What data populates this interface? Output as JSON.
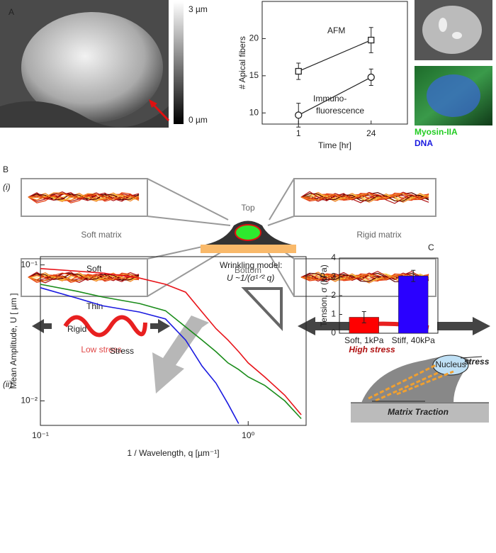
{
  "chart_data": [
    {
      "type": "line",
      "xlabel": "Time [hr]",
      "ylabel": "# Apical fibers",
      "categories": [
        "1",
        "24"
      ],
      "ylim": [
        8.5,
        25
      ],
      "yticks": [
        10,
        15,
        20
      ],
      "series": [
        {
          "name": "AFM",
          "color": "#222222",
          "marker": "square",
          "values": [
            15.6,
            19.8
          ],
          "errors": [
            1.1,
            1.7
          ]
        },
        {
          "name_lines": [
            "Immuno-",
            "fluorescence"
          ],
          "color": "#222222",
          "marker": "circle",
          "values": [
            9.7,
            14.8
          ],
          "errors": [
            1.6,
            1.1
          ]
        }
      ]
    },
    {
      "type": "loglog",
      "xlabel": "1 / Wavelength, q [µm⁻¹]",
      "ylabel": "Mean Amplitude, U [ µm ]",
      "x": [
        0.1,
        0.15,
        0.2,
        0.3,
        0.4,
        0.5,
        0.6,
        0.7,
        0.8,
        0.9,
        1.0,
        1.2,
        1.5,
        1.8
      ],
      "xlim": [
        0.1,
        1.9
      ],
      "ylim": [
        0.0066,
        0.115
      ],
      "xticks": [
        {
          "value": 0.1,
          "label": "10⁻¹"
        },
        {
          "value": 1,
          "label": "10⁰"
        }
      ],
      "yticks": [
        {
          "value": 0.1,
          "label": "10⁻¹"
        },
        {
          "value": 0.01,
          "label": "10⁻²"
        }
      ],
      "log_x": true,
      "log_y": true,
      "annotations": [
        "Wrinkling model:",
        "U ~1/(σ¹ᐟ² q)",
        "Stress"
      ],
      "series": [
        {
          "name": "Soft",
          "color": "#e8141a",
          "values": [
            0.094,
            0.09,
            0.087,
            0.08,
            0.072,
            0.063,
            0.045,
            0.034,
            0.028,
            0.023,
            0.019,
            0.015,
            0.011,
            0.0079
          ]
        },
        {
          "name": "Thin",
          "color": "#1a8c1a",
          "values": [
            0.072,
            0.064,
            0.058,
            0.052,
            0.046,
            0.035,
            0.028,
            0.023,
            0.019,
            0.017,
            0.015,
            0.013,
            0.01,
            0.0074
          ]
        },
        {
          "name": "Rigid",
          "color": "#1a1ae0",
          "values": [
            0.068,
            0.057,
            0.05,
            0.045,
            0.04,
            0.028,
            0.018,
            0.0135,
            0.0095,
            0.0068,
            null,
            null,
            null,
            null
          ]
        }
      ]
    },
    {
      "type": "bar",
      "ylabel": "Tension, σ (kPa)",
      "categories": [
        "Soft, 1kPa",
        "Stiff, 40kPa"
      ],
      "values": [
        0.85,
        3.05
      ],
      "errors": [
        0.3,
        0.3
      ],
      "colors": [
        "#ff0000",
        "#2a00ff"
      ],
      "ylim": [
        0,
        4
      ],
      "yticks": [
        0,
        1,
        2,
        3,
        4
      ]
    }
  ],
  "labels": {
    "panel_a": "A",
    "panel_b": "B",
    "panel_c": "C",
    "sub_i": "(i)",
    "sub_ii": "(ii)",
    "scale_top": "3 µm",
    "scale_bottom": "0 µm",
    "myosin": "Myosin-IIA",
    "dna": "DNA",
    "top": "Top",
    "bottom": "Bottom",
    "soft_matrix": "Soft matrix",
    "rigid_matrix": "Rigid matrix",
    "low_stress": "Low stress",
    "high_stress": "High stress",
    "stress": "stress",
    "nucleus": "Nucleus",
    "matrix_traction": "Matrix Traction"
  }
}
